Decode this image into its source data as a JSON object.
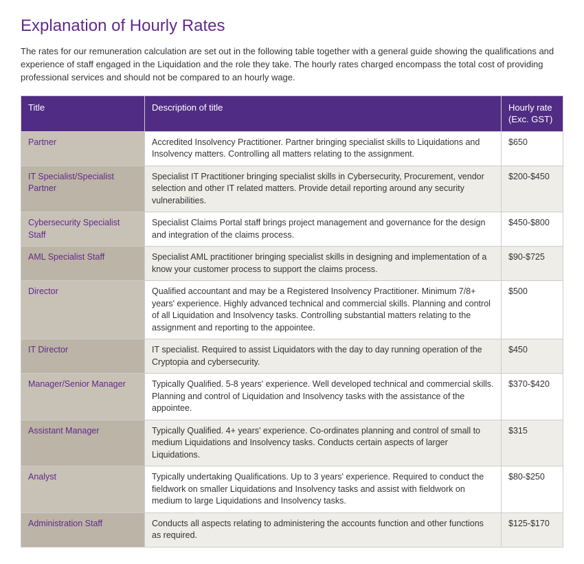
{
  "page": {
    "heading": "Explanation of Hourly Rates",
    "intro": "The rates for our remuneration calculation are set out in the following table together with a general guide showing the qualifications and experience of staff engaged in the Liquidation and the role they take. The hourly rates charged encompass the total cost of providing professional services and should not be compared to an hourly wage."
  },
  "table": {
    "headers": {
      "title": "Title",
      "description": "Description of title",
      "rate": "Hourly rate (Exc. GST)"
    },
    "rows": [
      {
        "title": "Partner",
        "description": "Accredited Insolvency Practitioner. Partner bringing specialist skills to Liquidations and Insolvency matters.  Controlling all matters relating to the assignment.",
        "rate": "$650"
      },
      {
        "title": "IT Specialist/Specialist Partner",
        "description": "Specialist IT Practitioner bringing specialist skills in Cybersecurity, Procurement, vendor selection and other IT related matters. Provide detail reporting around any security vulnerabilities.",
        "rate": "$200-$450"
      },
      {
        "title": "Cybersecurity Specialist Staff",
        "description": "Specialist Claims Portal staff brings project management and governance for the design and integration of the claims process.",
        "rate": "$450-$800"
      },
      {
        "title": "AML Specialist Staff",
        "description": "Specialist AML practitioner bringing specialist skills in designing and implementation of a know your customer process to support the claims process.",
        "rate": "$90-$725"
      },
      {
        "title": "Director",
        "description": "Qualified accountant and may be a Registered Insolvency Practitioner.  Minimum 7/8+ years' experience.  Highly advanced technical and commercial skills.  Planning and control of all Liquidation and Insolvency tasks.  Controlling substantial matters relating to the assignment and reporting to the appointee.",
        "rate": "$500"
      },
      {
        "title": "IT Director",
        "description": "IT specialist. Required to assist Liquidators with the day to day running operation of the Cryptopia and cybersecurity.",
        "rate": "$450"
      },
      {
        "title": "Manager/Senior Manager",
        "description": "Typically Qualified.  5-8 years' experience.  Well developed technical and commercial skills.  Planning and control of Liquidation and Insolvency tasks with the assistance of the appointee.",
        "rate": "$370-$420"
      },
      {
        "title": "Assistant Manager",
        "description": "Typically Qualified.  4+ years' experience.  Co-ordinates planning and control of small to medium Liquidations and Insolvency tasks.  Conducts certain aspects of larger Liquidations.",
        "rate": "$315"
      },
      {
        "title": "Analyst",
        "description": "Typically undertaking Qualifications.  Up to 3 years' experience.  Required to conduct the fieldwork on smaller Liquidations and Insolvency tasks and assist with fieldwork on medium to large Liquidations and Insolvency tasks.",
        "rate": "$80-$250"
      },
      {
        "title": "Administration Staff",
        "description": "Conducts all aspects relating to administering the accounts function and other functions as required.",
        "rate": "$125-$170"
      }
    ]
  },
  "style": {
    "heading_color": "#612a8a",
    "thead_bg": "#512c84",
    "thead_fg": "#ffffff",
    "row_title_odd_bg": "#c8c1b6",
    "row_title_even_bg": "#bcb4a6",
    "row_body_even_bg": "#efede8",
    "row_body_odd_bg": "#ffffff",
    "border_color": "#cccccc",
    "title_cell_color": "#612a8a",
    "body_text_color": "#333333"
  }
}
